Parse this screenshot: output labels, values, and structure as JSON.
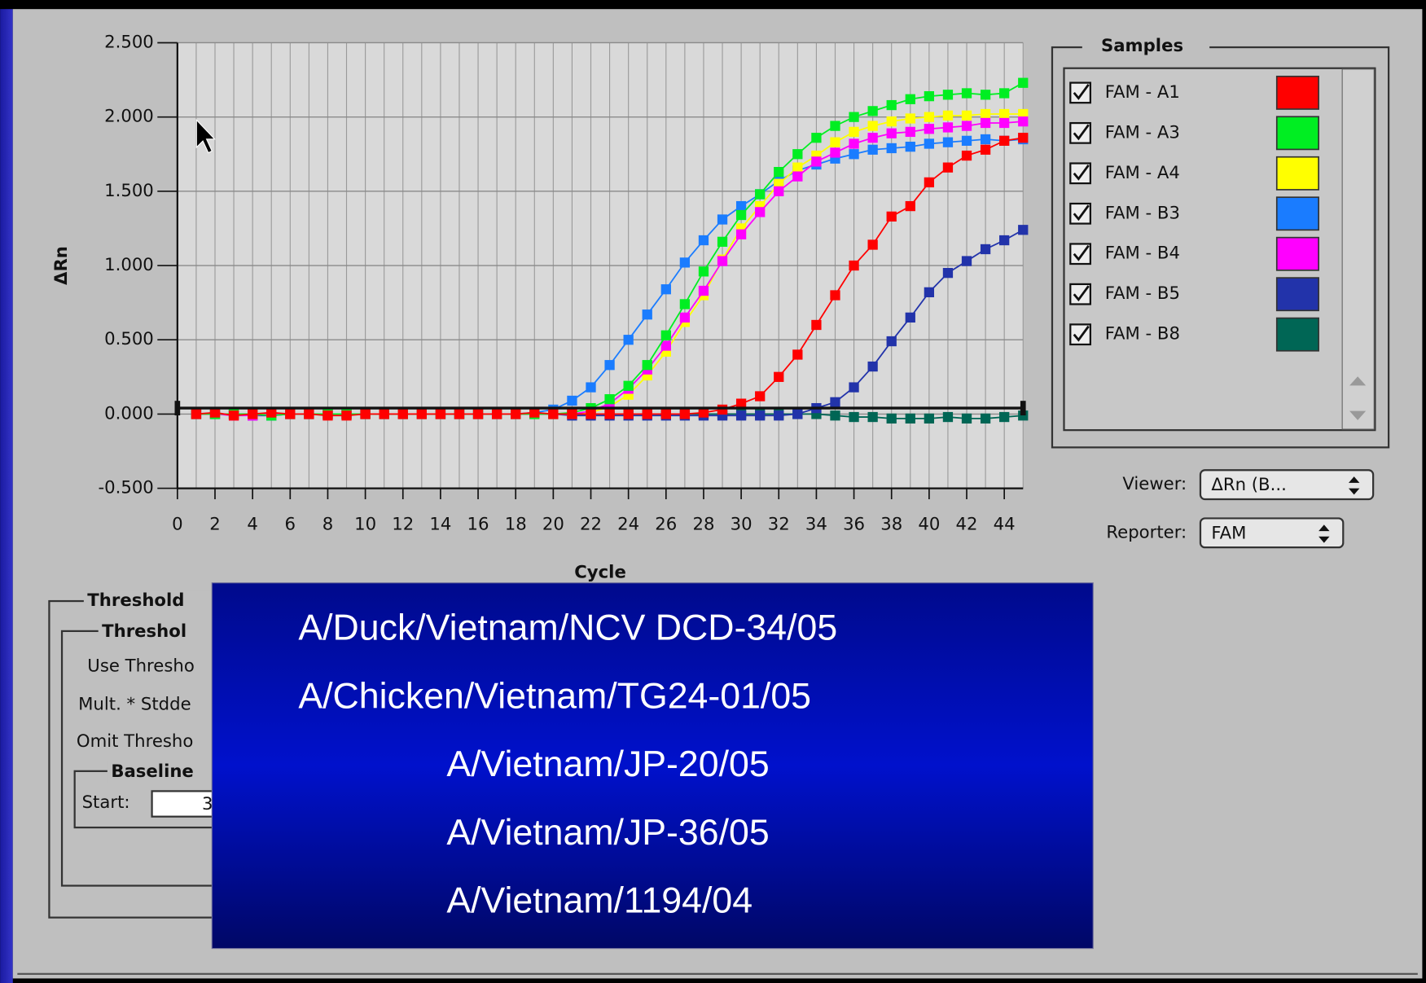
{
  "chart": {
    "type": "line",
    "ylabel": "ΔRn",
    "xlabel": "Cycle",
    "x": [
      1,
      2,
      3,
      4,
      5,
      6,
      7,
      8,
      9,
      10,
      11,
      12,
      13,
      14,
      15,
      16,
      17,
      18,
      19,
      20,
      21,
      22,
      23,
      24,
      25,
      26,
      27,
      28,
      29,
      30,
      31,
      32,
      33,
      34,
      35,
      36,
      37,
      38,
      39,
      40,
      41,
      42,
      43,
      44,
      45
    ],
    "xlim": [
      0,
      45
    ],
    "xticks": [
      0,
      2,
      4,
      6,
      8,
      10,
      12,
      14,
      16,
      18,
      20,
      22,
      24,
      26,
      28,
      30,
      32,
      34,
      36,
      38,
      40,
      42,
      44
    ],
    "ylim": [
      -0.5,
      2.5
    ],
    "yticks": [
      {
        "value": -0.5,
        "label": "-0.500"
      },
      {
        "value": 0,
        "label": "0.000"
      },
      {
        "value": 0.5,
        "label": "0.500"
      },
      {
        "value": 1,
        "label": "1.000"
      },
      {
        "value": 1.5,
        "label": "1.500"
      },
      {
        "value": 2,
        "label": "2.000"
      },
      {
        "value": 2.5,
        "label": "2.500"
      }
    ],
    "grid": true,
    "threshold": 0.04,
    "series": [
      {
        "name": "FAM - B8",
        "color": "#006655",
        "values": [
          0,
          0,
          0,
          0,
          0,
          0,
          0,
          0,
          0,
          0,
          0,
          0,
          0,
          0,
          0,
          0,
          0,
          0,
          0,
          0,
          0,
          0,
          0,
          0,
          0,
          0,
          0,
          0,
          0,
          0,
          0,
          0,
          0,
          0,
          -0.01,
          -0.02,
          -0.02,
          -0.03,
          -0.03,
          -0.03,
          -0.02,
          -0.03,
          -0.03,
          -0.02,
          -0.01
        ]
      },
      {
        "name": "FAM - B5",
        "color": "#2233aa",
        "values": [
          0,
          0,
          0,
          -0.01,
          -0.01,
          0,
          0,
          0,
          0,
          0,
          0,
          0,
          0,
          0,
          0,
          0,
          0,
          0,
          0,
          0,
          -0.01,
          -0.01,
          -0.01,
          -0.01,
          -0.01,
          -0.01,
          -0.01,
          -0.01,
          -0.01,
          -0.01,
          -0.01,
          -0.01,
          0,
          0.04,
          0.08,
          0.18,
          0.32,
          0.49,
          0.65,
          0.82,
          0.95,
          1.03,
          1.11,
          1.17,
          1.24
        ]
      },
      {
        "name": "FAM - B3",
        "color": "#1a7cff",
        "values": [
          0,
          0,
          0,
          0,
          -0.01,
          0,
          0,
          0,
          0,
          0,
          0,
          0,
          0,
          0,
          0,
          0,
          0,
          0,
          0.01,
          0.03,
          0.09,
          0.18,
          0.33,
          0.5,
          0.67,
          0.84,
          1.02,
          1.17,
          1.31,
          1.4,
          1.48,
          1.57,
          1.64,
          1.68,
          1.72,
          1.75,
          1.78,
          1.79,
          1.8,
          1.82,
          1.83,
          1.84,
          1.85,
          1.84,
          1.85
        ]
      },
      {
        "name": "FAM - A4",
        "color": "#ffff00",
        "values": [
          0,
          0,
          0,
          0,
          0,
          0,
          0,
          0,
          0,
          0,
          0,
          0,
          0,
          0,
          0,
          0,
          0,
          0,
          0,
          0,
          0,
          0.01,
          0.05,
          0.13,
          0.26,
          0.42,
          0.62,
          0.8,
          1.04,
          1.25,
          1.4,
          1.55,
          1.66,
          1.74,
          1.83,
          1.9,
          1.94,
          1.97,
          1.99,
          2.0,
          2.01,
          2.01,
          2.02,
          2.02,
          2.02
        ]
      },
      {
        "name": "FAM - B4",
        "color": "#ff00ff",
        "values": [
          0,
          0,
          -0.01,
          -0.01,
          0,
          0,
          0,
          0,
          0,
          0,
          0,
          0,
          0,
          0,
          0,
          0,
          0,
          0,
          0,
          0,
          0,
          0.02,
          0.07,
          0.17,
          0.3,
          0.46,
          0.65,
          0.83,
          1.03,
          1.21,
          1.36,
          1.5,
          1.6,
          1.7,
          1.76,
          1.82,
          1.86,
          1.89,
          1.9,
          1.92,
          1.93,
          1.94,
          1.96,
          1.96,
          1.97
        ]
      },
      {
        "name": "FAM - A3",
        "color": "#00ee22",
        "values": [
          0,
          0,
          0,
          0,
          -0.01,
          0,
          0,
          0,
          0,
          0,
          0,
          0,
          0,
          0,
          0,
          0,
          0,
          0,
          0,
          0,
          0.01,
          0.04,
          0.1,
          0.19,
          0.33,
          0.53,
          0.74,
          0.96,
          1.16,
          1.34,
          1.48,
          1.63,
          1.75,
          1.86,
          1.94,
          2.0,
          2.04,
          2.08,
          2.12,
          2.14,
          2.15,
          2.16,
          2.15,
          2.16,
          2.23
        ]
      },
      {
        "name": "FAM - A1",
        "color": "#ff0000",
        "values": [
          0,
          0.01,
          -0.01,
          0,
          0.01,
          0,
          0,
          -0.01,
          -0.01,
          0,
          0,
          0,
          0,
          0,
          0,
          0,
          0,
          0,
          0.01,
          0,
          0,
          0,
          0,
          0,
          0,
          0,
          0,
          0.01,
          0.03,
          0.07,
          0.12,
          0.25,
          0.4,
          0.6,
          0.8,
          1.0,
          1.14,
          1.33,
          1.4,
          1.56,
          1.66,
          1.74,
          1.78,
          1.84,
          1.86
        ]
      }
    ]
  },
  "samples": {
    "title": "Samples",
    "items": [
      {
        "label": "FAM - A1",
        "color": "#ff0000"
      },
      {
        "label": "FAM - A3",
        "color": "#00ee22"
      },
      {
        "label": "FAM - A4",
        "color": "#ffff00"
      },
      {
        "label": "FAM - B3",
        "color": "#1a7cff"
      },
      {
        "label": "FAM - B4",
        "color": "#ff00ff"
      },
      {
        "label": "FAM - B5",
        "color": "#2233aa"
      },
      {
        "label": "FAM - B8",
        "color": "#006655"
      }
    ]
  },
  "viewer": {
    "label": "Viewer:",
    "value": "ΔRn (B..."
  },
  "reporter": {
    "label": "Reporter:",
    "value": "FAM"
  },
  "threshold_panel": {
    "title": "Threshold",
    "subtitle": "Threshol",
    "rows": [
      "Use Thresho",
      "Mult. * Stdde",
      "Omit Thresho"
    ],
    "baseline": "Baseline",
    "start_label": "Start:",
    "start_value": "3"
  },
  "overlay": {
    "lines": [
      "A/Duck/Vietnam/NCV DCD-34/05",
      "A/Chicken/Vietnam/TG24-01/05",
      "A/Vietnam/JP-20/05",
      "A/Vietnam/JP-36/05",
      "A/Vietnam/1194/04"
    ]
  }
}
